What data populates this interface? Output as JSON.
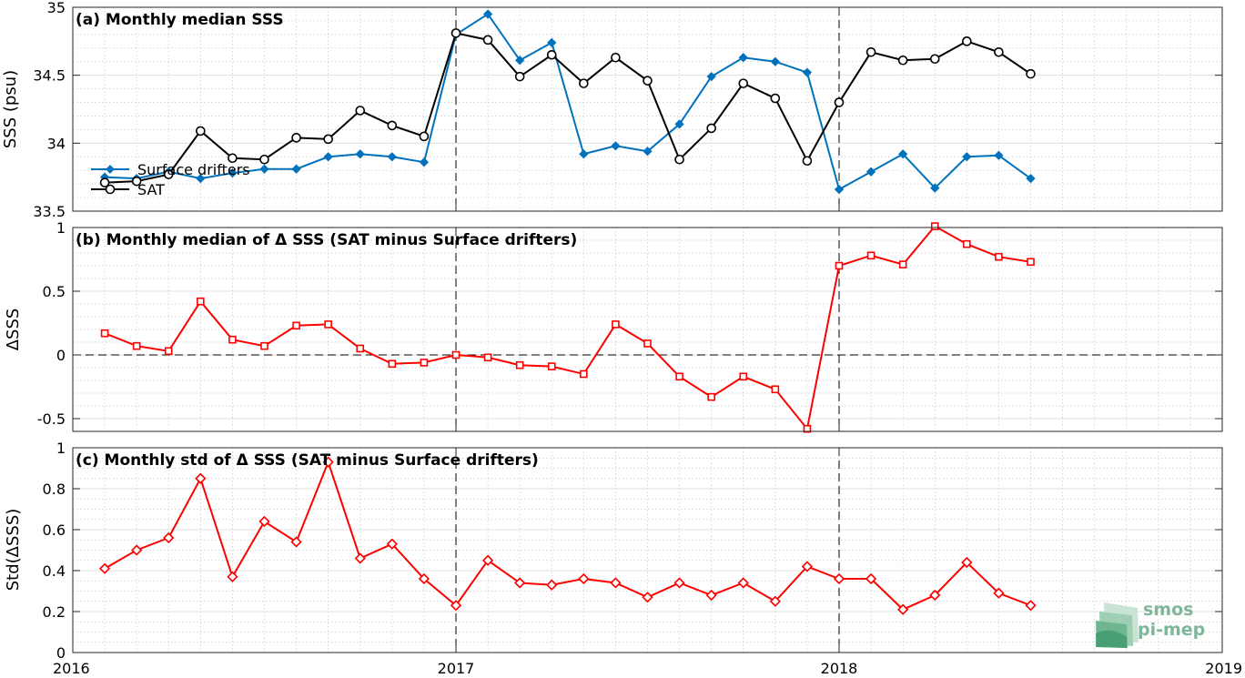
{
  "x_ticks": [
    "2016",
    "2017",
    "2018",
    "2019"
  ],
  "logo": {
    "line1": "smos",
    "line2": "pi-mep"
  },
  "chart_data": [
    {
      "type": "line",
      "title": "(a) Monthly median SSS",
      "ylabel": "SSS (psu)",
      "ylim": [
        33.5,
        35
      ],
      "yticks": [
        "33.5",
        "34",
        "34.5",
        "35"
      ],
      "ytick_values": [
        33.5,
        34,
        34.5,
        35
      ],
      "xlim": [
        "2016-01",
        "2019-01"
      ],
      "grid": true,
      "legend_position": "left",
      "x": [
        "2016-02",
        "2016-03",
        "2016-04",
        "2016-05",
        "2016-06",
        "2016-07",
        "2016-08",
        "2016-09",
        "2016-10",
        "2016-11",
        "2016-12",
        "2017-01",
        "2017-02",
        "2017-03",
        "2017-04",
        "2017-05",
        "2017-06",
        "2017-07",
        "2017-08",
        "2017-09",
        "2017-10",
        "2017-11",
        "2017-12",
        "2018-01",
        "2018-02",
        "2018-03",
        "2018-04",
        "2018-05",
        "2018-06",
        "2018-07"
      ],
      "series": [
        {
          "name": "Surface drifters",
          "color": "#0072bd",
          "marker": "diamond",
          "values": [
            33.75,
            33.74,
            33.79,
            33.74,
            33.78,
            33.81,
            33.81,
            33.9,
            33.92,
            33.9,
            33.86,
            34.8,
            34.95,
            34.61,
            34.74,
            33.92,
            33.98,
            33.94,
            34.14,
            34.49,
            34.63,
            34.6,
            34.52,
            33.66,
            33.79,
            33.92,
            33.67,
            33.9,
            33.91,
            33.74
          ]
        },
        {
          "name": "SAT",
          "color": "#000000",
          "marker": "circle",
          "values": [
            33.71,
            33.72,
            33.77,
            34.09,
            33.89,
            33.88,
            34.04,
            34.03,
            34.24,
            34.13,
            34.05,
            34.81,
            34.76,
            34.49,
            34.65,
            34.44,
            34.63,
            34.46,
            33.88,
            34.11,
            34.44,
            34.33,
            33.87,
            34.3,
            34.67,
            34.61,
            34.62,
            34.75,
            34.67,
            34.51
          ]
        }
      ]
    },
    {
      "type": "line",
      "title": "(b) Monthly median of Δ SSS (SAT minus Surface drifters)",
      "ylabel": "ΔSSS",
      "ylim": [
        -0.6,
        1
      ],
      "yticks": [
        "-0.5",
        "0",
        "0.5",
        "1"
      ],
      "ytick_values": [
        -0.5,
        0,
        0.5,
        1
      ],
      "xlim": [
        "2016-01",
        "2019-01"
      ],
      "grid": true,
      "x": [
        "2016-02",
        "2016-03",
        "2016-04",
        "2016-05",
        "2016-06",
        "2016-07",
        "2016-08",
        "2016-09",
        "2016-10",
        "2016-11",
        "2016-12",
        "2017-01",
        "2017-02",
        "2017-03",
        "2017-04",
        "2017-05",
        "2017-06",
        "2017-07",
        "2017-08",
        "2017-09",
        "2017-10",
        "2017-11",
        "2017-12",
        "2018-01",
        "2018-02",
        "2018-03",
        "2018-04",
        "2018-05",
        "2018-06",
        "2018-07"
      ],
      "series": [
        {
          "color": "#ff0000",
          "marker": "square",
          "values": [
            0.17,
            0.07,
            0.03,
            0.42,
            0.12,
            0.07,
            0.23,
            0.24,
            0.05,
            -0.07,
            -0.06,
            0.0,
            -0.02,
            -0.08,
            -0.09,
            -0.15,
            0.24,
            0.09,
            -0.17,
            -0.33,
            -0.17,
            -0.27,
            -0.58,
            0.7,
            0.78,
            0.71,
            1.01,
            0.87,
            0.77,
            0.73
          ]
        }
      ]
    },
    {
      "type": "line",
      "title": "(c) Monthly std of Δ SSS (SAT minus Surface drifters)",
      "ylabel": "Std(ΔSSS)",
      "ylim": [
        0,
        1
      ],
      "yticks": [
        "0",
        "0.2",
        "0.4",
        "0.6",
        "0.8",
        "1"
      ],
      "ytick_values": [
        0,
        0.2,
        0.4,
        0.6,
        0.8,
        1
      ],
      "xlim": [
        "2016-01",
        "2019-01"
      ],
      "grid": true,
      "x": [
        "2016-02",
        "2016-03",
        "2016-04",
        "2016-05",
        "2016-06",
        "2016-07",
        "2016-08",
        "2016-09",
        "2016-10",
        "2016-11",
        "2016-12",
        "2017-01",
        "2017-02",
        "2017-03",
        "2017-04",
        "2017-05",
        "2017-06",
        "2017-07",
        "2017-08",
        "2017-09",
        "2017-10",
        "2017-11",
        "2017-12",
        "2018-01",
        "2018-02",
        "2018-03",
        "2018-04",
        "2018-05",
        "2018-06",
        "2018-07"
      ],
      "series": [
        {
          "color": "#ff0000",
          "marker": "diamond",
          "values": [
            0.41,
            0.5,
            0.56,
            0.85,
            0.37,
            0.64,
            0.54,
            0.93,
            0.46,
            0.53,
            0.36,
            0.23,
            0.45,
            0.34,
            0.33,
            0.36,
            0.34,
            0.27,
            0.34,
            0.28,
            0.34,
            0.25,
            0.42,
            0.36,
            0.36,
            0.21,
            0.28,
            0.44,
            0.29,
            0.23
          ]
        }
      ]
    }
  ]
}
